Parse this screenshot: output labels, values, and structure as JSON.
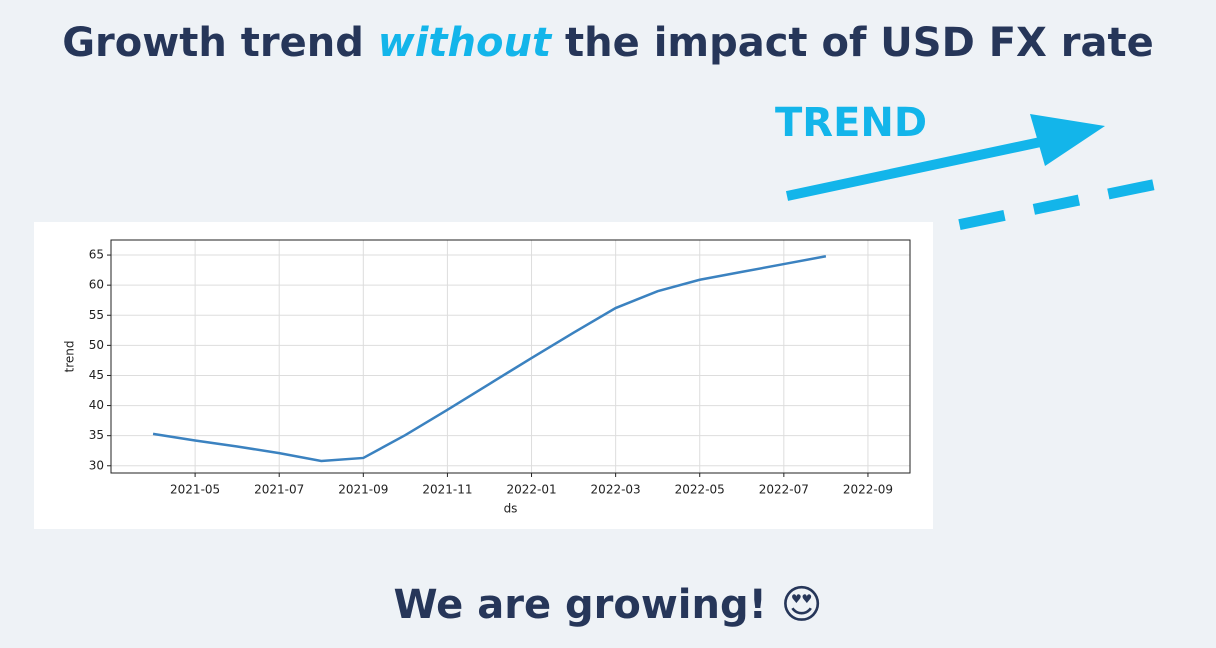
{
  "header": {
    "title_before": "Growth trend",
    "title_emphasis": "without",
    "title_after": "the impact of USD FX rate"
  },
  "annotation": "TREND",
  "footer": "We are growing! 😍",
  "chart_data": {
    "type": "line",
    "x_label": "ds",
    "y_label": "trend",
    "x": [
      "2021-04",
      "2021-05",
      "2021-06",
      "2021-07",
      "2021-08",
      "2021-09",
      "2021-10",
      "2021-11",
      "2021-12",
      "2022-01",
      "2022-02",
      "2022-03",
      "2022-04",
      "2022-05",
      "2022-06",
      "2022-07",
      "2022-08"
    ],
    "series": [
      {
        "name": "trend",
        "color": "#3b82c0",
        "values": [
          35.3,
          34.2,
          33.2,
          32.1,
          30.8,
          31.3,
          35.1,
          39.3,
          43.6,
          47.9,
          52.1,
          56.2,
          59.0,
          60.9,
          62.2,
          63.5,
          64.8
        ]
      }
    ],
    "xlim": [
      "2021-03",
      "2022-10"
    ],
    "xticks": [
      "2021-05",
      "2021-07",
      "2021-09",
      "2021-11",
      "2022-01",
      "2022-03",
      "2022-05",
      "2022-07",
      "2022-09"
    ],
    "ylim": [
      28.8,
      67.5
    ],
    "yticks": [
      30,
      35,
      40,
      45,
      50,
      55,
      60,
      65
    ],
    "grid": true
  }
}
